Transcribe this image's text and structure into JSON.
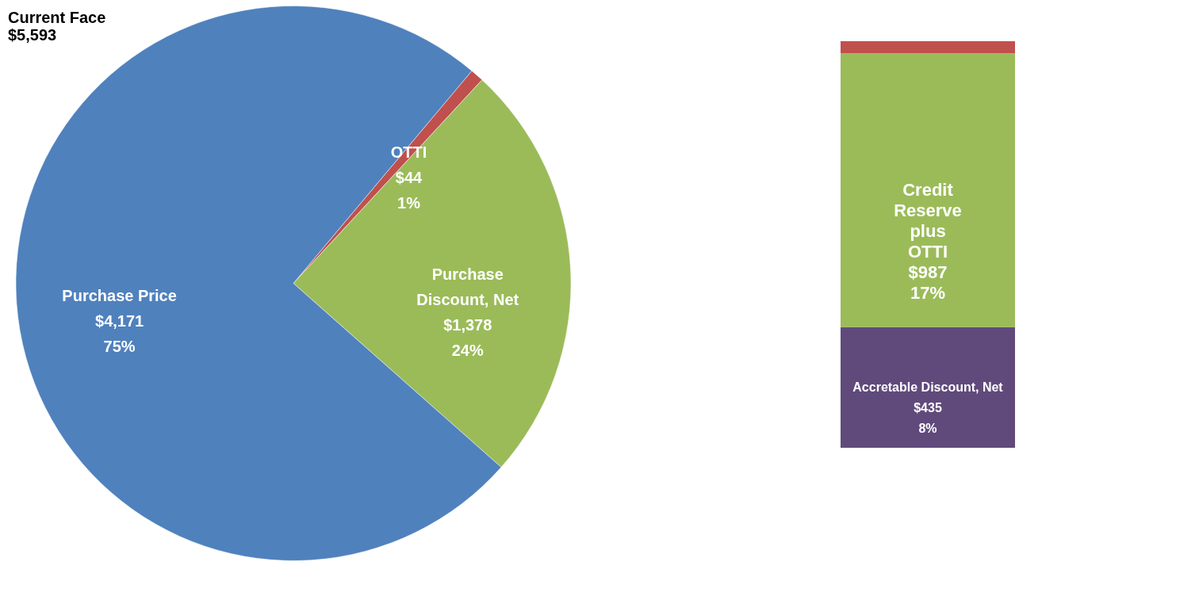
{
  "chart_data": [
    {
      "type": "pie",
      "title": "Current Face $5,593",
      "categories": [
        "OTTI",
        "Purchase Discount, Net",
        "Purchase Price"
      ],
      "values": [
        44,
        1378,
        4171
      ],
      "colors": [
        "#c0504d",
        "#9bbb59",
        "#4f81bd"
      ],
      "value_labels": [
        "$44 1%",
        "$1,378 24%",
        "$4,171 75%"
      ],
      "legend": false
    },
    {
      "type": "bar",
      "stacked": true,
      "categories": [
        null
      ],
      "tick_labels": false,
      "legend": false,
      "series": [
        {
          "name": "Accretable Discount, Net",
          "color": "#604a7b",
          "values": [
            435
          ],
          "value_labels": [
            "$435 8%"
          ]
        },
        {
          "name": "Credit Reserve plus OTTI",
          "color": "#9bbb59",
          "values": [
            987
          ],
          "value_labels": [
            "$987 17%"
          ]
        },
        {
          "color": "#c0504d",
          "values": [
            44
          ],
          "value_labels": [
            null
          ]
        }
      ]
    }
  ]
}
